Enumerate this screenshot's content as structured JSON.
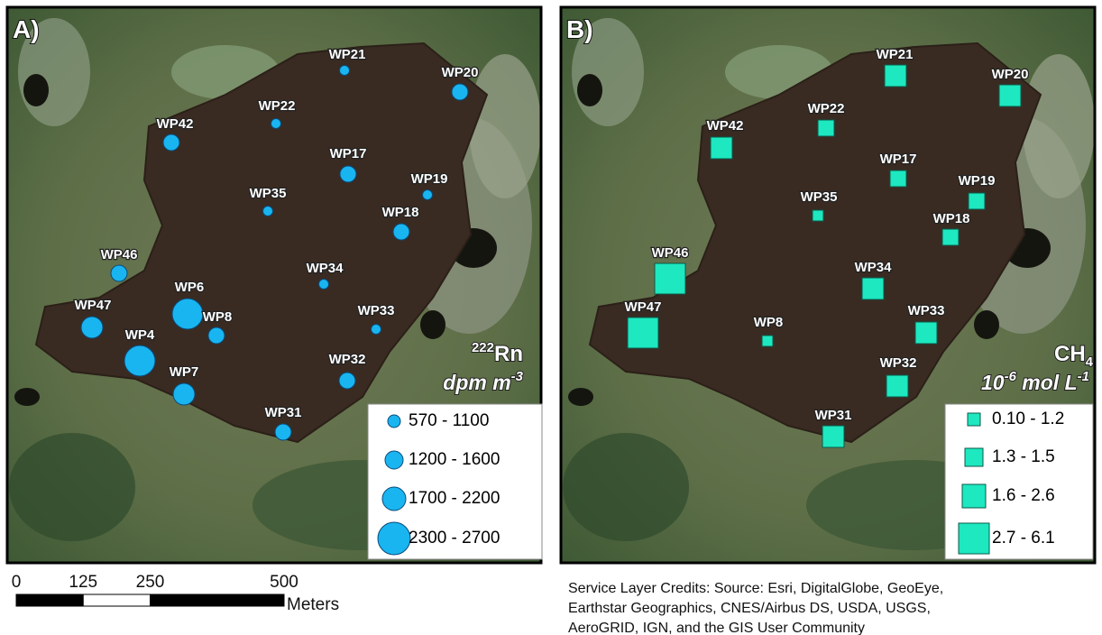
{
  "panels": [
    {
      "label": "A)",
      "sites": [
        "WP21",
        "WP20",
        "WP22",
        "WP42",
        "WP17",
        "WP19",
        "WP35",
        "WP18",
        "WP46",
        "WP34",
        "WP6",
        "WP47",
        "WP8",
        "WP33",
        "WP4",
        "WP7",
        "WP32",
        "WP31"
      ],
      "legend_title": {
        "mass": "222",
        "symbol": "Rn",
        "units": "dpm m",
        "exponent": "-3"
      },
      "legend": [
        "570 - 1100",
        "1200 - 1600",
        "1700 - 2200",
        "2300 - 2700"
      ]
    },
    {
      "label": "B)",
      "sites": [
        "WP21",
        "WP20",
        "WP42",
        "WP22",
        "WP17",
        "WP19",
        "WP35",
        "WP18",
        "WP46",
        "WP34",
        "WP47",
        "WP8",
        "WP33",
        "WP32",
        "WP31"
      ],
      "legend_title": {
        "symbol": "CH",
        "subscript": "4",
        "base": "10",
        "exponent": "-6",
        "units": " mol L",
        "units_exponent": "-1"
      },
      "legend": [
        "0.10 - 1.2",
        "1.3 - 1.5",
        "1.6 - 2.6",
        "2.7 - 6.1"
      ]
    }
  ],
  "scale_bar": {
    "ticks": [
      0,
      125,
      250,
      500
    ],
    "unit": "Meters"
  },
  "credits": [
    "Service Layer Credits:  Source: Esri, DigitalGlobe, GeoEye,",
    "Earthstar Geographics, CNES/Airbus DS, USDA, USGS,",
    "AeroGRID, IGN, and the GIS User Community"
  ]
}
